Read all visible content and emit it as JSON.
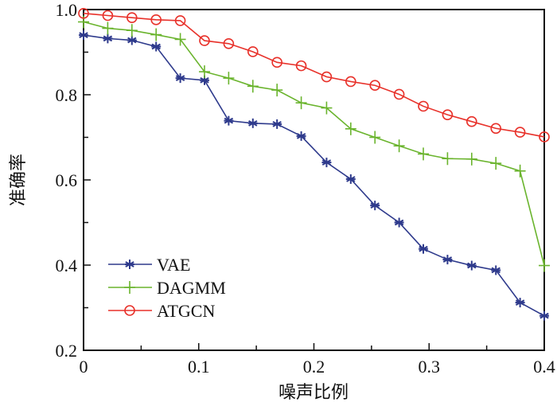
{
  "chart_data": {
    "type": "line",
    "title": "",
    "xlabel": "噪声比例",
    "ylabel": "准确率",
    "xlim": [
      0,
      0.4
    ],
    "ylim": [
      0.2,
      1.0
    ],
    "grid": false,
    "legend_position": "bottom-left",
    "x_ticks": [
      0,
      0.1,
      0.2,
      0.3,
      0.4
    ],
    "x_tick_labels": [
      "0",
      "0.1",
      "0.2",
      "0.3",
      "0.4"
    ],
    "x_minor_ticks": [
      0.05,
      0.15,
      0.25,
      0.35
    ],
    "y_ticks": [
      0.2,
      0.4,
      0.6,
      0.8,
      1.0
    ],
    "y_tick_labels": [
      "0.2",
      "0.4",
      "0.6",
      "0.8",
      "1.0"
    ],
    "y_minor_ticks": [
      0.3,
      0.5,
      0.7,
      0.9
    ],
    "x": [
      0,
      0.021,
      0.042,
      0.063,
      0.084,
      0.105,
      0.126,
      0.147,
      0.168,
      0.189,
      0.211,
      0.232,
      0.253,
      0.274,
      0.295,
      0.316,
      0.337,
      0.358,
      0.379,
      0.4
    ],
    "series": [
      {
        "name": "VAE",
        "color": "#2e3a8c",
        "marker": "asterisk",
        "values": [
          0.94,
          0.932,
          0.928,
          0.913,
          0.839,
          0.834,
          0.739,
          0.733,
          0.731,
          0.703,
          0.641,
          0.602,
          0.54,
          0.5,
          0.438,
          0.413,
          0.399,
          0.388,
          0.312,
          0.281
        ]
      },
      {
        "name": "DAGMM",
        "color": "#6ab42d",
        "marker": "plus",
        "values": [
          0.971,
          0.956,
          0.951,
          0.941,
          0.93,
          0.854,
          0.839,
          0.82,
          0.811,
          0.781,
          0.769,
          0.72,
          0.7,
          0.68,
          0.661,
          0.65,
          0.649,
          0.639,
          0.621,
          0.399
        ]
      },
      {
        "name": "ATGCN",
        "color": "#e8312a",
        "marker": "circle",
        "values": [
          0.991,
          0.986,
          0.981,
          0.976,
          0.974,
          0.927,
          0.92,
          0.901,
          0.876,
          0.868,
          0.842,
          0.831,
          0.822,
          0.801,
          0.773,
          0.753,
          0.737,
          0.721,
          0.712,
          0.701
        ]
      }
    ]
  }
}
